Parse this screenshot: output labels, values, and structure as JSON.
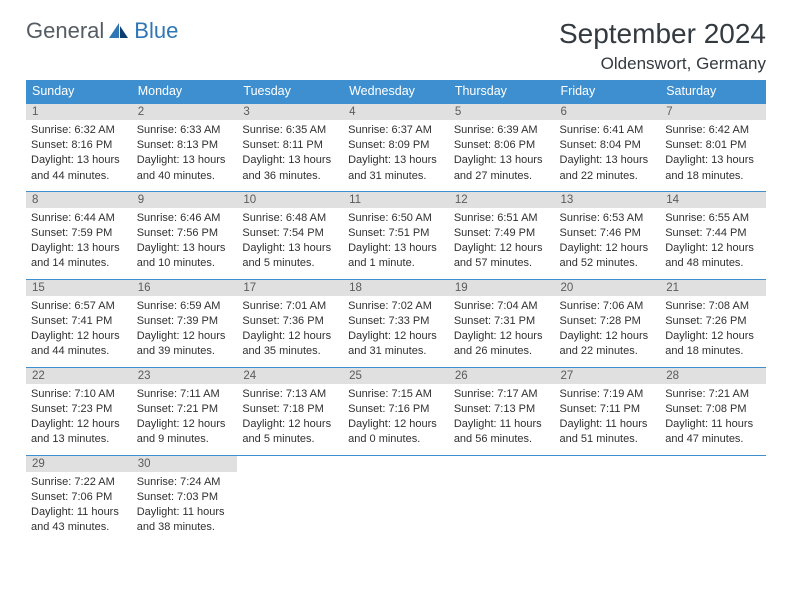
{
  "brand": {
    "general": "General",
    "blue": "Blue"
  },
  "title": "September 2024",
  "location": "Oldenswort, Germany",
  "colors": {
    "header_bg": "#3e8fcf",
    "header_text": "#ffffff",
    "daynum_bg": "#e0e0e0",
    "daynum_text": "#5b5b5b",
    "border": "#3e8fcf",
    "body_text": "#303030",
    "logo_general": "#555c63",
    "logo_blue": "#2f76b6",
    "title_color": "#333a40",
    "background": "#ffffff"
  },
  "typography": {
    "month_title_pt": 28,
    "location_pt": 17,
    "logo_pt": 22,
    "dayheader_pt": 12.5,
    "daynum_pt": 11.5,
    "body_pt": 11
  },
  "columns": [
    "Sunday",
    "Monday",
    "Tuesday",
    "Wednesday",
    "Thursday",
    "Friday",
    "Saturday"
  ],
  "weeks": [
    [
      {
        "n": "1",
        "sr": "Sunrise: 6:32 AM",
        "ss": "Sunset: 8:16 PM",
        "dl1": "Daylight: 13 hours",
        "dl2": "and 44 minutes."
      },
      {
        "n": "2",
        "sr": "Sunrise: 6:33 AM",
        "ss": "Sunset: 8:13 PM",
        "dl1": "Daylight: 13 hours",
        "dl2": "and 40 minutes."
      },
      {
        "n": "3",
        "sr": "Sunrise: 6:35 AM",
        "ss": "Sunset: 8:11 PM",
        "dl1": "Daylight: 13 hours",
        "dl2": "and 36 minutes."
      },
      {
        "n": "4",
        "sr": "Sunrise: 6:37 AM",
        "ss": "Sunset: 8:09 PM",
        "dl1": "Daylight: 13 hours",
        "dl2": "and 31 minutes."
      },
      {
        "n": "5",
        "sr": "Sunrise: 6:39 AM",
        "ss": "Sunset: 8:06 PM",
        "dl1": "Daylight: 13 hours",
        "dl2": "and 27 minutes."
      },
      {
        "n": "6",
        "sr": "Sunrise: 6:41 AM",
        "ss": "Sunset: 8:04 PM",
        "dl1": "Daylight: 13 hours",
        "dl2": "and 22 minutes."
      },
      {
        "n": "7",
        "sr": "Sunrise: 6:42 AM",
        "ss": "Sunset: 8:01 PM",
        "dl1": "Daylight: 13 hours",
        "dl2": "and 18 minutes."
      }
    ],
    [
      {
        "n": "8",
        "sr": "Sunrise: 6:44 AM",
        "ss": "Sunset: 7:59 PM",
        "dl1": "Daylight: 13 hours",
        "dl2": "and 14 minutes."
      },
      {
        "n": "9",
        "sr": "Sunrise: 6:46 AM",
        "ss": "Sunset: 7:56 PM",
        "dl1": "Daylight: 13 hours",
        "dl2": "and 10 minutes."
      },
      {
        "n": "10",
        "sr": "Sunrise: 6:48 AM",
        "ss": "Sunset: 7:54 PM",
        "dl1": "Daylight: 13 hours",
        "dl2": "and 5 minutes."
      },
      {
        "n": "11",
        "sr": "Sunrise: 6:50 AM",
        "ss": "Sunset: 7:51 PM",
        "dl1": "Daylight: 13 hours",
        "dl2": "and 1 minute."
      },
      {
        "n": "12",
        "sr": "Sunrise: 6:51 AM",
        "ss": "Sunset: 7:49 PM",
        "dl1": "Daylight: 12 hours",
        "dl2": "and 57 minutes."
      },
      {
        "n": "13",
        "sr": "Sunrise: 6:53 AM",
        "ss": "Sunset: 7:46 PM",
        "dl1": "Daylight: 12 hours",
        "dl2": "and 52 minutes."
      },
      {
        "n": "14",
        "sr": "Sunrise: 6:55 AM",
        "ss": "Sunset: 7:44 PM",
        "dl1": "Daylight: 12 hours",
        "dl2": "and 48 minutes."
      }
    ],
    [
      {
        "n": "15",
        "sr": "Sunrise: 6:57 AM",
        "ss": "Sunset: 7:41 PM",
        "dl1": "Daylight: 12 hours",
        "dl2": "and 44 minutes."
      },
      {
        "n": "16",
        "sr": "Sunrise: 6:59 AM",
        "ss": "Sunset: 7:39 PM",
        "dl1": "Daylight: 12 hours",
        "dl2": "and 39 minutes."
      },
      {
        "n": "17",
        "sr": "Sunrise: 7:01 AM",
        "ss": "Sunset: 7:36 PM",
        "dl1": "Daylight: 12 hours",
        "dl2": "and 35 minutes."
      },
      {
        "n": "18",
        "sr": "Sunrise: 7:02 AM",
        "ss": "Sunset: 7:33 PM",
        "dl1": "Daylight: 12 hours",
        "dl2": "and 31 minutes."
      },
      {
        "n": "19",
        "sr": "Sunrise: 7:04 AM",
        "ss": "Sunset: 7:31 PM",
        "dl1": "Daylight: 12 hours",
        "dl2": "and 26 minutes."
      },
      {
        "n": "20",
        "sr": "Sunrise: 7:06 AM",
        "ss": "Sunset: 7:28 PM",
        "dl1": "Daylight: 12 hours",
        "dl2": "and 22 minutes."
      },
      {
        "n": "21",
        "sr": "Sunrise: 7:08 AM",
        "ss": "Sunset: 7:26 PM",
        "dl1": "Daylight: 12 hours",
        "dl2": "and 18 minutes."
      }
    ],
    [
      {
        "n": "22",
        "sr": "Sunrise: 7:10 AM",
        "ss": "Sunset: 7:23 PM",
        "dl1": "Daylight: 12 hours",
        "dl2": "and 13 minutes."
      },
      {
        "n": "23",
        "sr": "Sunrise: 7:11 AM",
        "ss": "Sunset: 7:21 PM",
        "dl1": "Daylight: 12 hours",
        "dl2": "and 9 minutes."
      },
      {
        "n": "24",
        "sr": "Sunrise: 7:13 AM",
        "ss": "Sunset: 7:18 PM",
        "dl1": "Daylight: 12 hours",
        "dl2": "and 5 minutes."
      },
      {
        "n": "25",
        "sr": "Sunrise: 7:15 AM",
        "ss": "Sunset: 7:16 PM",
        "dl1": "Daylight: 12 hours",
        "dl2": "and 0 minutes."
      },
      {
        "n": "26",
        "sr": "Sunrise: 7:17 AM",
        "ss": "Sunset: 7:13 PM",
        "dl1": "Daylight: 11 hours",
        "dl2": "and 56 minutes."
      },
      {
        "n": "27",
        "sr": "Sunrise: 7:19 AM",
        "ss": "Sunset: 7:11 PM",
        "dl1": "Daylight: 11 hours",
        "dl2": "and 51 minutes."
      },
      {
        "n": "28",
        "sr": "Sunrise: 7:21 AM",
        "ss": "Sunset: 7:08 PM",
        "dl1": "Daylight: 11 hours",
        "dl2": "and 47 minutes."
      }
    ],
    [
      {
        "n": "29",
        "sr": "Sunrise: 7:22 AM",
        "ss": "Sunset: 7:06 PM",
        "dl1": "Daylight: 11 hours",
        "dl2": "and 43 minutes."
      },
      {
        "n": "30",
        "sr": "Sunrise: 7:24 AM",
        "ss": "Sunset: 7:03 PM",
        "dl1": "Daylight: 11 hours",
        "dl2": "and 38 minutes."
      },
      null,
      null,
      null,
      null,
      null
    ]
  ]
}
